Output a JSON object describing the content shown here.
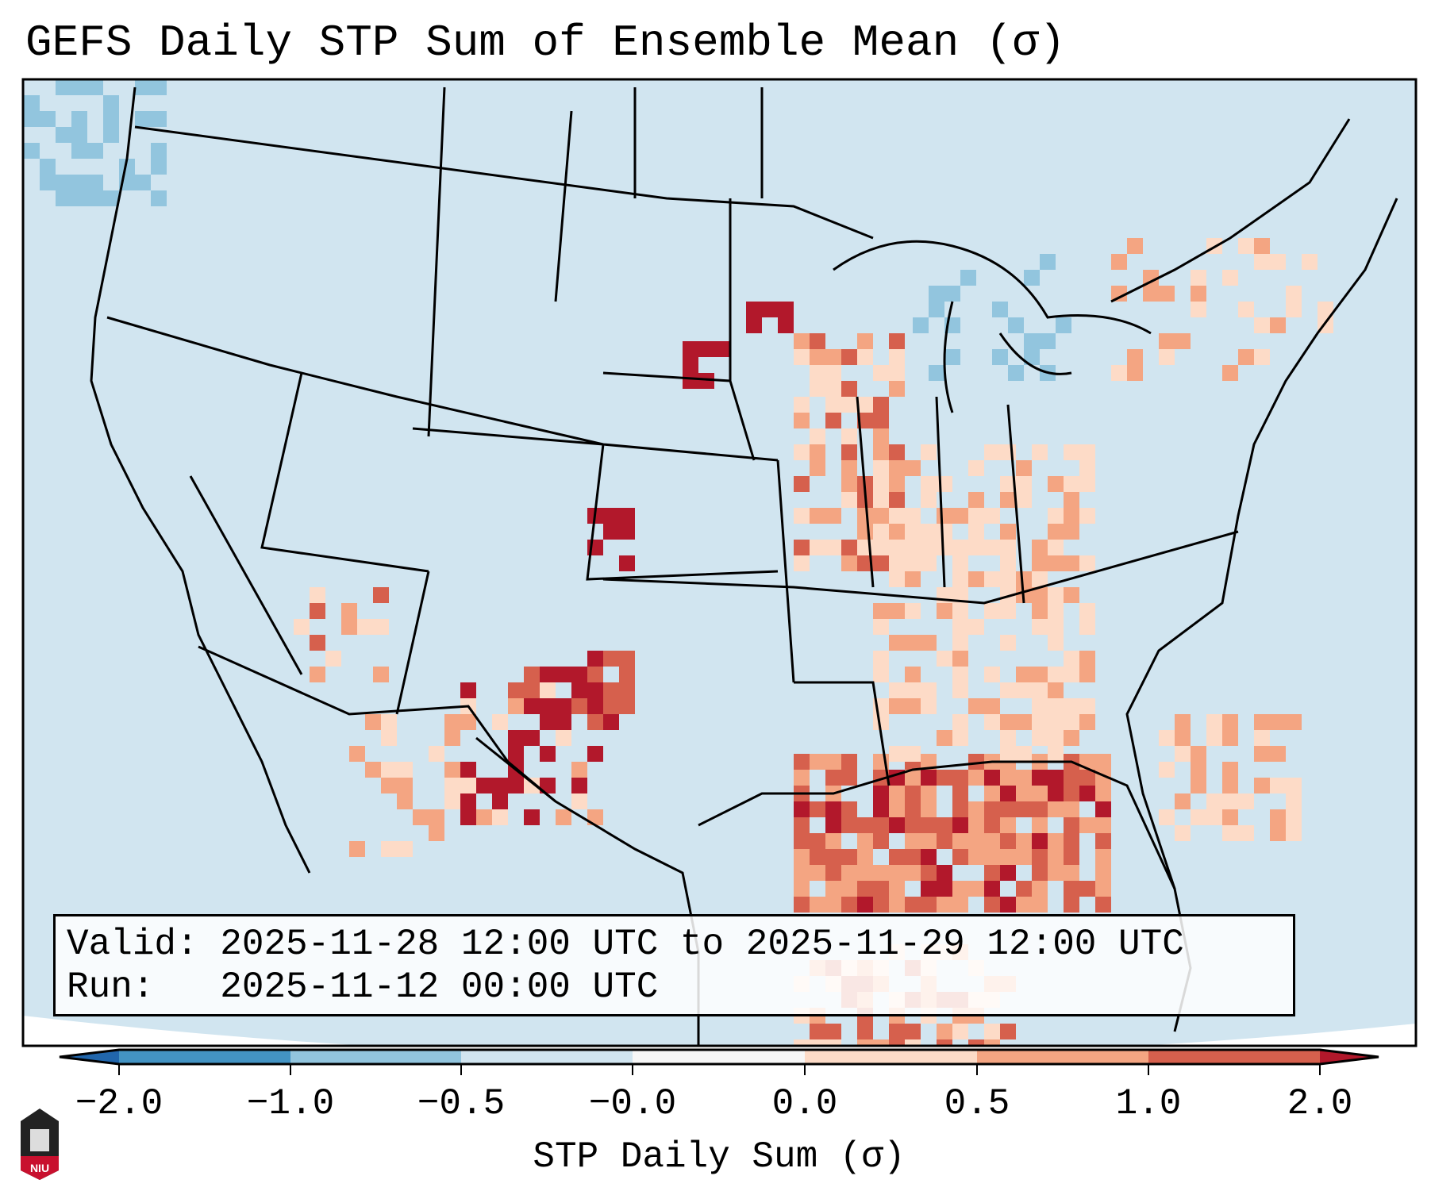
{
  "chart_data": {
    "type": "heatmap",
    "title": "GEFS Daily STP Sum of Ensemble Mean (σ)",
    "map_region": "Continental United States",
    "colorbar": {
      "label": "STP Daily Sum (σ)",
      "extend": "both",
      "tick_labels": [
        "−2.0",
        "−1.0",
        "−0.5",
        "−0.0",
        "0.0",
        "0.5",
        "1.0",
        "2.0"
      ],
      "bins": [
        {
          "range": "< -2.0",
          "color": "#2166ac"
        },
        {
          "range": "-2.0 to -1.0",
          "color": "#4393c3"
        },
        {
          "range": "-1.0 to -0.5",
          "color": "#92c5de"
        },
        {
          "range": "-0.5 to -0.0",
          "color": "#d1e5f0"
        },
        {
          "range": "-0.0 to 0.0",
          "color": "#f7f7f7"
        },
        {
          "range": "0.0 to 0.5",
          "color": "#fddbc7"
        },
        {
          "range": "0.5 to 1.0",
          "color": "#f4a582"
        },
        {
          "range": "1.0 to 2.0",
          "color": "#d6604d"
        },
        {
          "range": "> 2.0",
          "color": "#b2182b"
        }
      ]
    },
    "annotation": {
      "valid_line": "Valid: 2025-11-28 12:00 UTC to 2025-11-29 12:00 UTC",
      "run_line": "Run:   2025-11-12 00:00 UTC"
    }
  },
  "logo": {
    "text": "NIU"
  }
}
